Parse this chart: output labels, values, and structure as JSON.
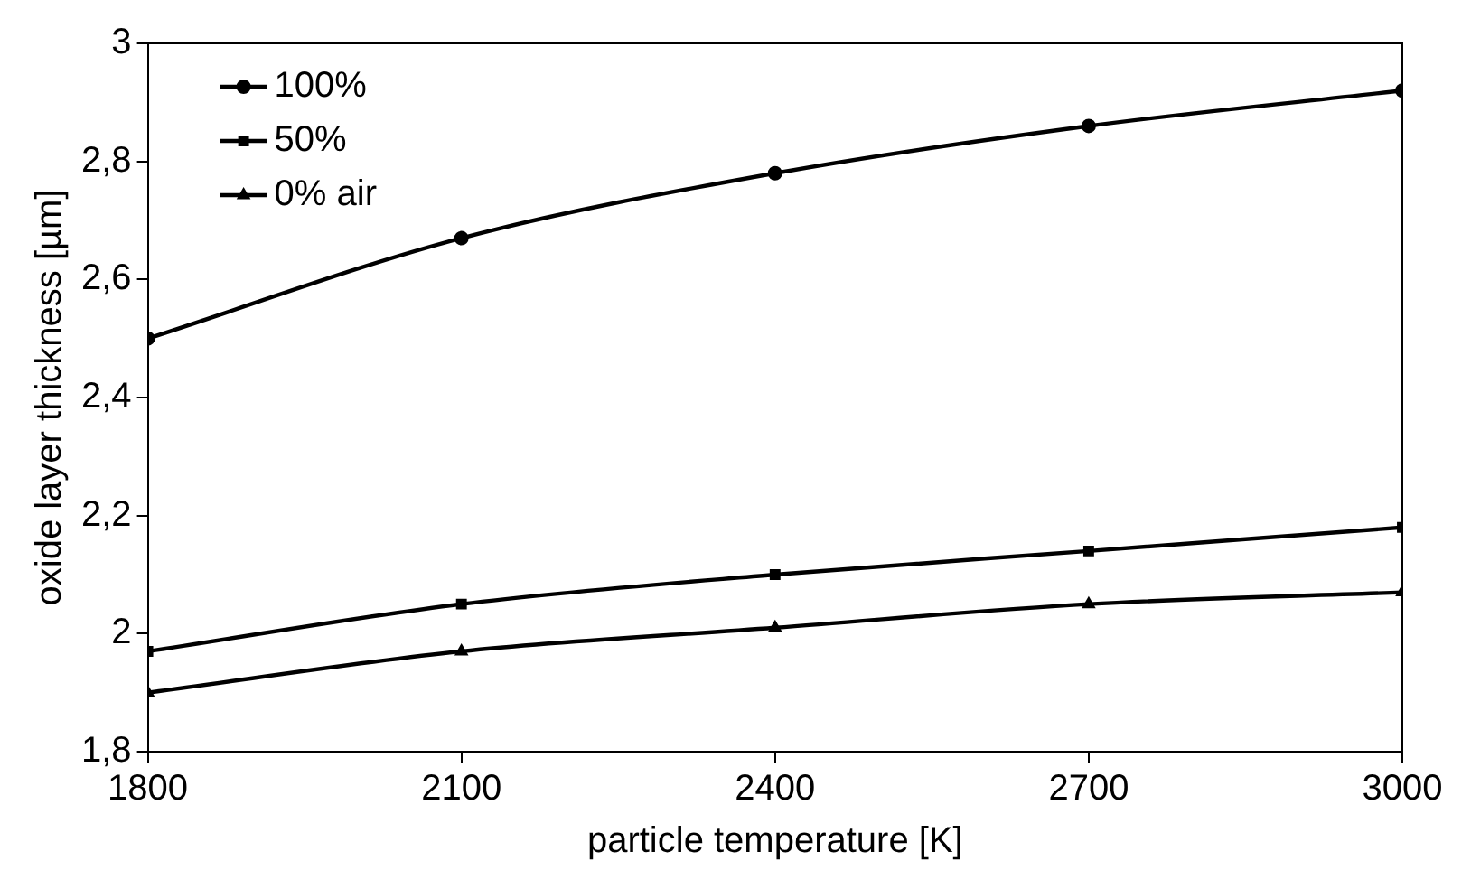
{
  "chart_data": {
    "type": "line",
    "xlabel": "particle temperature [K]",
    "ylabel": "oxide layer thickness [µm]",
    "x": [
      1800,
      2100,
      2400,
      2700,
      3000
    ],
    "series": [
      {
        "name": "100%",
        "color": "#000000",
        "marker": "circle",
        "values": [
          2.5,
          2.67,
          2.78,
          2.86,
          2.92
        ]
      },
      {
        "name": "50%",
        "color": "#000000",
        "marker": "square",
        "values": [
          1.97,
          2.05,
          2.1,
          2.14,
          2.18
        ]
      },
      {
        "name": "0% air",
        "color": "#000000",
        "marker": "triangle",
        "values": [
          1.9,
          1.97,
          2.01,
          2.05,
          2.07
        ]
      }
    ],
    "xlim": [
      1800,
      3000
    ],
    "xticks": [
      1800,
      2100,
      2400,
      2700,
      3000
    ],
    "ylim": [
      1.8,
      3
    ],
    "yticks": [
      {
        "value": 1.8,
        "label": "1,8"
      },
      2,
      {
        "value": 2.2,
        "label": "2,2"
      },
      {
        "value": 2.4,
        "label": "2,4"
      },
      {
        "value": 2.6,
        "label": "2,6"
      },
      {
        "value": 2.8,
        "label": "2,8"
      },
      3
    ],
    "grid": false,
    "legend": "top left",
    "line_style": "solid"
  }
}
